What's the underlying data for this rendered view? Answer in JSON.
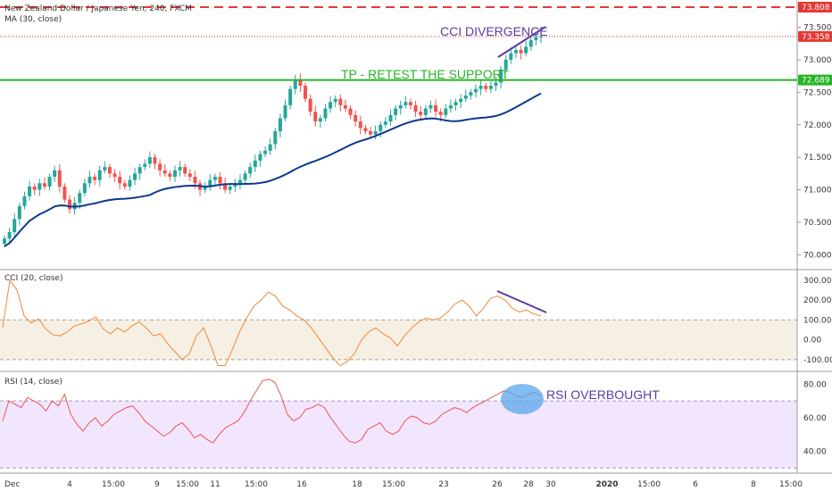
{
  "colors": {
    "bull": "#26a69a",
    "bear": "#ef5350",
    "ma": "#0d3a8c",
    "cci_line": "#f0883e",
    "rsi_line": "#ef5350",
    "green_line": "#26b426",
    "red_dash": "#e53935",
    "purple": "#5b3aa6",
    "cci_band": "#f6efe3",
    "rsi_band": "#f2e6ff",
    "rsi_ellipse": "#5aa6ea"
  },
  "legends": {
    "main": "New Zealand Dollar / Japanese Yen, 240, FXCM",
    "ma": "MA (30, close)",
    "cci": "CCI (20, close)",
    "rsi": "RSI (14, close)"
  },
  "annotations": {
    "cci_divergence": "CCI DIVERGENCE",
    "tp": "TP - RETEST THE SUPPORT",
    "rsi_ob": "RSI OVERBOUGHT"
  },
  "price_labels": {
    "resistance": "73.808",
    "last": "73.358",
    "support": "72.689"
  },
  "chart_data": [
    {
      "type": "candlestick",
      "title": "New Zealand Dollar / Japanese Yen, 240, FXCM",
      "ylim": [
        69.8,
        73.85
      ],
      "y_ticks": [
        "73.500",
        "73.000",
        "72.500",
        "72.000",
        "71.500",
        "71.000",
        "70.500",
        "70.000"
      ],
      "x_ticks": [
        "Dec",
        "4",
        "15:00",
        "9",
        "15:00",
        "11",
        "15:00",
        "16",
        "18",
        "15:00",
        "23",
        "26",
        "28",
        "30",
        "2020",
        "15:00",
        "6",
        "8",
        "15:00"
      ],
      "horizontal_lines": [
        {
          "label": "resistance",
          "value": 73.808,
          "style": "dashed"
        },
        {
          "label": "support",
          "value": 72.689,
          "style": "solid"
        }
      ],
      "last_price": 73.358,
      "closes": [
        70.25,
        70.35,
        70.55,
        70.75,
        70.9,
        71.05,
        71.0,
        71.1,
        71.05,
        71.2,
        71.3,
        71.05,
        70.85,
        70.7,
        70.8,
        70.95,
        71.1,
        71.2,
        71.15,
        71.3,
        71.35,
        71.25,
        71.2,
        71.1,
        71.05,
        71.15,
        71.25,
        71.35,
        71.4,
        71.5,
        71.4,
        71.3,
        71.25,
        71.2,
        71.3,
        71.35,
        71.25,
        71.2,
        71.1,
        71.0,
        71.05,
        71.15,
        71.2,
        71.1,
        71.0,
        71.05,
        71.1,
        71.15,
        71.25,
        71.35,
        71.45,
        71.55,
        71.6,
        71.7,
        71.9,
        72.1,
        72.3,
        72.55,
        72.7,
        72.6,
        72.4,
        72.2,
        72.05,
        72.1,
        72.25,
        72.35,
        72.4,
        72.3,
        72.25,
        72.15,
        72.05,
        71.95,
        71.9,
        71.85,
        71.9,
        72.0,
        72.05,
        72.15,
        72.25,
        72.3,
        72.35,
        72.3,
        72.2,
        72.15,
        72.25,
        72.3,
        72.2,
        72.15,
        72.25,
        72.3,
        72.35,
        72.4,
        72.45,
        72.5,
        72.55,
        72.6,
        72.55,
        72.6,
        72.65,
        72.85,
        73.0,
        73.1,
        73.15,
        73.1,
        73.2,
        73.3,
        73.35,
        73.358
      ],
      "ma_period": 30
    },
    {
      "type": "line",
      "title": "CCI (20, close)",
      "ylim": [
        -150,
        340
      ],
      "y_ticks": [
        "300.00",
        "200.00",
        "100.00",
        "0.00",
        "-100.00"
      ],
      "band": [
        -100,
        100
      ],
      "values": [
        60,
        300,
        250,
        120,
        85,
        105,
        55,
        25,
        20,
        40,
        70,
        80,
        95,
        115,
        55,
        30,
        60,
        40,
        70,
        90,
        60,
        20,
        30,
        -20,
        -60,
        -100,
        -70,
        20,
        60,
        -30,
        -130,
        -130,
        -50,
        40,
        110,
        170,
        200,
        240,
        220,
        170,
        150,
        120,
        100,
        60,
        10,
        -40,
        -90,
        -130,
        -110,
        -70,
        0,
        40,
        60,
        30,
        10,
        -30,
        20,
        60,
        90,
        110,
        100,
        110,
        140,
        180,
        200,
        170,
        120,
        160,
        210,
        220,
        200,
        160,
        140,
        150,
        130,
        120
      ],
      "divergence_line": [
        220,
        125
      ]
    },
    {
      "type": "line",
      "title": "RSI (14, close)",
      "ylim": [
        28,
        86
      ],
      "y_ticks": [
        "80.00",
        "60.00",
        "40.00"
      ],
      "band": [
        30,
        70
      ],
      "values": [
        58,
        70,
        68,
        66,
        72,
        70,
        68,
        64,
        70,
        67,
        74,
        62,
        56,
        52,
        57,
        60,
        55,
        58,
        62,
        64,
        66,
        67,
        63,
        58,
        55,
        52,
        49,
        51,
        55,
        57,
        53,
        48,
        50,
        47,
        45,
        50,
        54,
        56,
        58,
        63,
        70,
        76,
        82,
        83,
        81,
        73,
        62,
        58,
        60,
        65,
        66,
        68,
        66,
        60,
        55,
        50,
        46,
        45,
        47,
        53,
        55,
        57,
        52,
        50,
        52,
        58,
        61,
        60,
        57,
        56,
        58,
        62,
        64,
        66,
        65,
        63,
        66,
        68,
        70,
        72,
        74,
        76,
        75,
        73,
        72,
        74,
        75,
        73
      ]
    }
  ]
}
